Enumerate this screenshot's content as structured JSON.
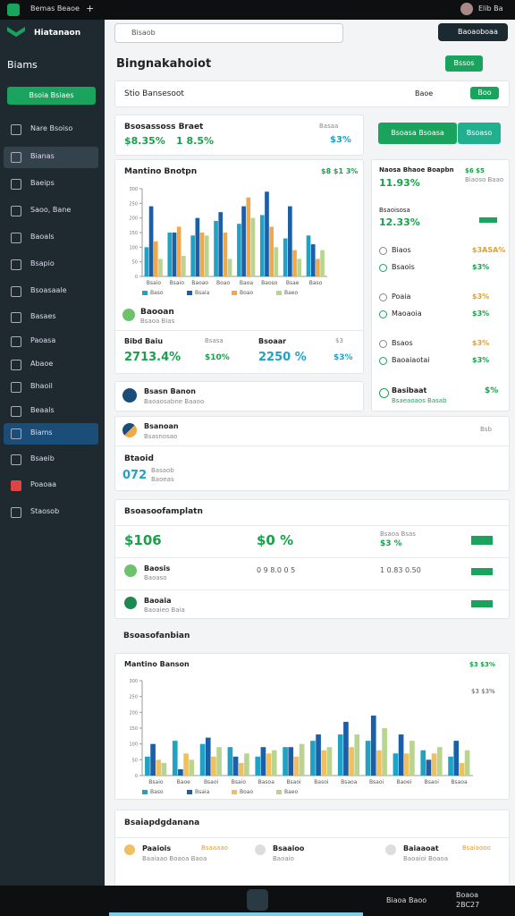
{
  "topbar": {
    "tab": "Bemas Beaoe",
    "plus": "+",
    "user": "Elib Ba"
  },
  "sidebar": {
    "brand": "Hiatanaon",
    "section": "Biams",
    "button": "Bsoia Bsiaes",
    "items": [
      "Nare Bsoiso",
      "Bianas",
      "Baeips",
      "Saoo, Bane",
      "Baoals",
      "Bsapio",
      "Bsoasaale",
      "Basaes",
      "Paoasa",
      "Abaoe",
      "Bhaoil",
      "Beaals",
      "Biams",
      "Bsaeib",
      "Poaoaa",
      "Staosob"
    ]
  },
  "search": {
    "placeholder": "Bisaob",
    "account": "Baoaoboaa"
  },
  "header": {
    "title": "Bingnakahoiot",
    "button": "Bssos"
  },
  "filter": {
    "label": "Stio Bansesoot",
    "select": "Baoe",
    "toggle": "Boo"
  },
  "summary": {
    "title": "Bsosassoss Braet",
    "value1": "$8.35%",
    "value2": "1 8.5%",
    "value3": "$3%",
    "tag": "Basaa"
  },
  "chart1": {
    "type": "bar",
    "title": "Mantino Bnotpn",
    "badge": "$8 $1 3%",
    "categories": [
      "Bsaio",
      "Bsaio",
      "Baoao",
      "Boao",
      "Baoa",
      "Baoso",
      "Bsae",
      "Baso"
    ],
    "series": [
      {
        "name": "Baso",
        "color": "#1fa2c4",
        "values": [
          100,
          150,
          140,
          190,
          180,
          210,
          130,
          140
        ]
      },
      {
        "name": "Bsaia",
        "color": "#1a5fa8",
        "values": [
          240,
          150,
          200,
          220,
          240,
          290,
          240,
          110
        ]
      },
      {
        "name": "Boao",
        "color": "#f0a94a",
        "values": [
          120,
          170,
          150,
          150,
          270,
          170,
          90,
          60
        ]
      },
      {
        "name": "Baeo",
        "color": "#b8d48f",
        "values": [
          60,
          70,
          140,
          60,
          200,
          100,
          60,
          90
        ]
      }
    ],
    "ylim": [
      0,
      300
    ],
    "yticks": [
      0,
      50,
      100,
      150,
      200,
      250,
      300
    ]
  },
  "chart1_footer": {
    "name": "Baooan",
    "sub": "Bsaoa Bias",
    "stat1": {
      "label": "Bibd Baiu",
      "tag": "Bsasa",
      "value": "2713.4%",
      "delta": "$10%"
    },
    "stat2": {
      "label": "Bsoaar",
      "tag": "$3",
      "value": "2250 %",
      "delta": "$3%"
    }
  },
  "right": {
    "button1": "Bsoasa Bsoasa",
    "button2": "Bsoaso",
    "head": {
      "title": "Naosa Bhaoe Boapbn",
      "value": "11.93%",
      "badge": "$6 $5",
      "sub": "Biaoso Baao"
    },
    "second": {
      "title": "Bsaoisosa",
      "value": "12.33%"
    },
    "items": [
      {
        "name": "Biaos",
        "value": "$3ASA%"
      },
      {
        "name": "Bsaois",
        "value": "$3%"
      },
      {
        "name": "Poaia",
        "value": "$3%"
      },
      {
        "name": "Maoaoia",
        "value": "$3%"
      },
      {
        "name": "Bsaos",
        "value": "$3%"
      },
      {
        "name": "Baoaiaotai",
        "value": "$3%"
      }
    ],
    "foot": {
      "title": "Basibaat",
      "sub": "Bsaeaoaos Basab",
      "value": "$%"
    }
  },
  "row1": {
    "title": "Bsasn Banon",
    "sub": "Baoaosabne Baaoo"
  },
  "card2": {
    "title": "Bsanoan",
    "sub": "Bsasnosao",
    "right": "Bsb",
    "label": "Btaoid",
    "value": "072",
    "v1": "Basaob",
    "v2": "Baoeas"
  },
  "card3": {
    "title": "Bsoasoofamplatn",
    "s1": "$106",
    "s2": "$0 %",
    "s3label": "Bsaoa Bsas",
    "s3": "$3 %",
    "r1": {
      "title": "Baosis",
      "sub": "Baoaso",
      "v1": "0 9 8.0 0 5",
      "v2": "1 0.83 0.50"
    },
    "r2": {
      "title": "Baoaia",
      "sub": "Baoaieo Baia"
    }
  },
  "section2": {
    "title": "Bsoasofanbian"
  },
  "chart2": {
    "type": "bar",
    "title": "Mantino Banson",
    "badge": "$3 $3%",
    "badge2": "$3 $3%",
    "categories": [
      "Bsaio",
      "Baoe",
      "Bsaoi",
      "Bsaio",
      "Basoa",
      "Bsaoi",
      "Basoi",
      "Bsaoa",
      "Bsaoi",
      "Baoei",
      "Bsaoi",
      "Bsaoa"
    ],
    "series": [
      {
        "name": "Baso",
        "color": "#1fa2c4",
        "values": [
          60,
          110,
          100,
          90,
          60,
          90,
          110,
          130,
          110,
          70,
          80,
          60
        ]
      },
      {
        "name": "Bsaia",
        "color": "#1a5fa8",
        "values": [
          100,
          20,
          120,
          60,
          90,
          90,
          130,
          170,
          190,
          130,
          50,
          110
        ]
      },
      {
        "name": "Boao",
        "color": "#f0c060",
        "values": [
          50,
          70,
          60,
          40,
          70,
          60,
          80,
          90,
          80,
          70,
          70,
          40
        ]
      },
      {
        "name": "Baeo",
        "color": "#b8d48f",
        "values": [
          40,
          50,
          90,
          70,
          80,
          100,
          90,
          130,
          150,
          110,
          90,
          80
        ]
      }
    ],
    "ylim": [
      0,
      300
    ],
    "yticks": [
      0,
      50,
      100,
      150,
      200,
      250,
      300
    ]
  },
  "card4": {
    "title": "Bsaiapdgdanana",
    "cols": [
      {
        "title": "Paaiois",
        "tag": "Bsaaaao",
        "sub": "Baaiaao Boaoa Baoa"
      },
      {
        "title": "Bsaaioo",
        "tag": "",
        "sub": "Baoaio"
      },
      {
        "title": "Baiaaoat",
        "tag": "Bsaiaooo",
        "sub": "Baoaioi Boaoa"
      }
    ]
  },
  "taskbar": {
    "status": "Biaoa Baoo",
    "time": "Boaoa",
    "date": "2BC27"
  }
}
